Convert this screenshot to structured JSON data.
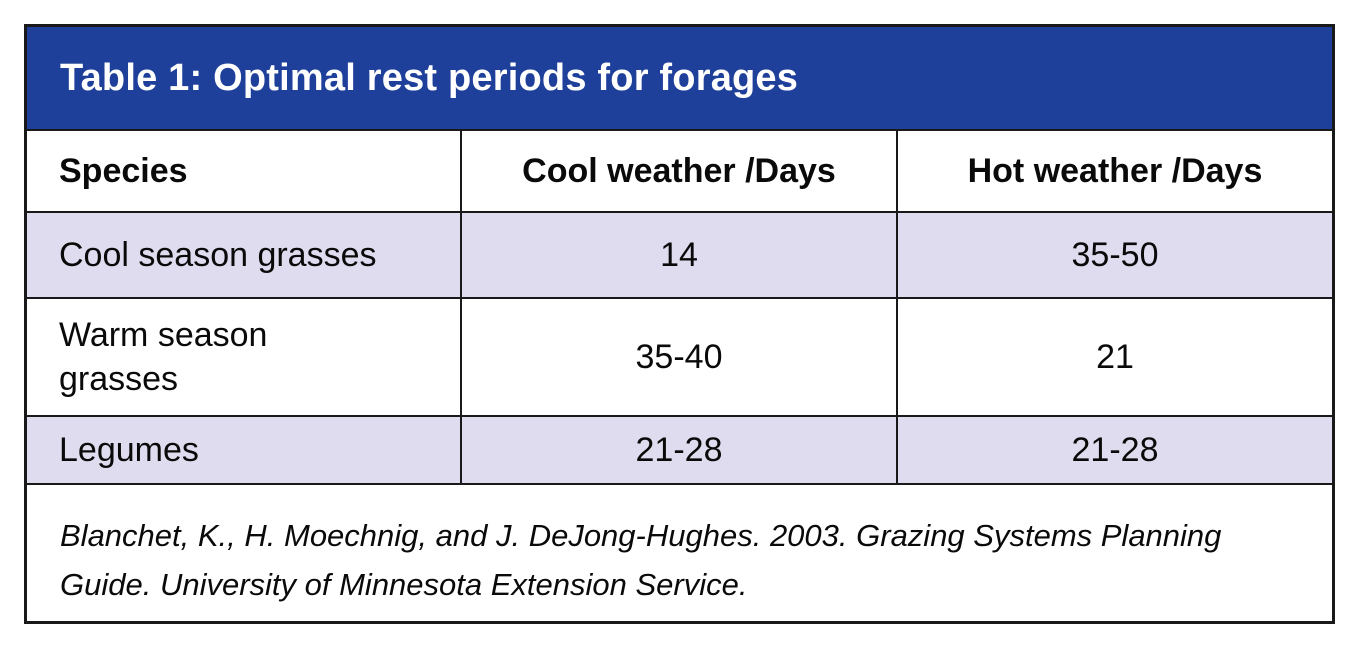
{
  "table": {
    "title": "Table 1: Optimal rest periods for forages",
    "header": {
      "species": "Species",
      "cool": "Cool weather /Days",
      "hot": "Hot weather /Days"
    },
    "rows": [
      {
        "species": "Cool season grasses",
        "cool": "14",
        "hot": "35-50"
      },
      {
        "species": "Warm season grasses",
        "cool": "35-40",
        "hot": "21"
      },
      {
        "species": "Legumes",
        "cool": "21-28",
        "hot": "21-28"
      }
    ],
    "source": "Blanchet, K., H. Moechnig, and J. DeJong-Hughes. 2003. Grazing Systems Planning Guide. University of Minnesota Extension Service.",
    "colors": {
      "title_band_bg": "#1f409a",
      "shaded_row_bg": "#dedcee",
      "border": "#191919",
      "title_text": "#ffffff",
      "body_text": "#0a0a0a"
    }
  },
  "chart_data": {
    "type": "table",
    "title": "Table 1: Optimal rest periods for forages",
    "columns": [
      "Species",
      "Cool weather /Days",
      "Hot weather /Days"
    ],
    "rows": [
      [
        "Cool season grasses",
        "14",
        "35-50"
      ],
      [
        "Warm season grasses",
        "35-40",
        "21"
      ],
      [
        "Legumes",
        "21-28",
        "21-28"
      ]
    ],
    "source": "Blanchet, K., H. Moechnig, and J. DeJong-Hughes. 2003. Grazing Systems Planning Guide. University of Minnesota Extension Service."
  }
}
